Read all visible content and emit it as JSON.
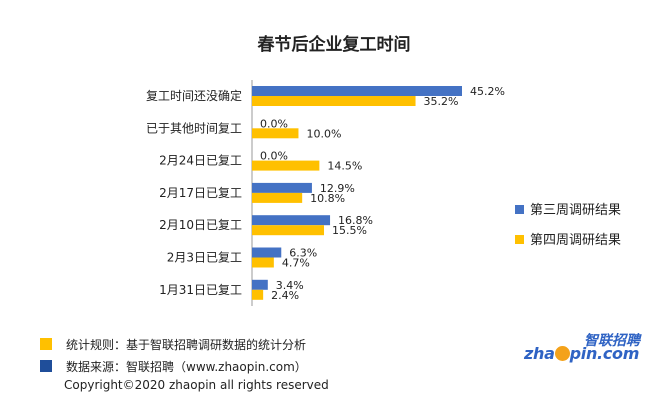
{
  "chart_data": {
    "type": "bar",
    "orientation": "horizontal",
    "title": "春节后企业复工时间",
    "categories": [
      "复工时间还没确定",
      "已于其他时间复工",
      "2月24日已复工",
      "2月17日已复工",
      "2月10日已复工",
      "2月3日已复工",
      "1月31日已复工"
    ],
    "series": [
      {
        "name": "第三周调研结果",
        "color": "#4472c4",
        "values": [
          45.2,
          0.0,
          0.0,
          12.9,
          16.8,
          6.3,
          3.4
        ],
        "labels": [
          "45.2%",
          "0.0%",
          "0.0%",
          "12.9%",
          "16.8%",
          "6.3%",
          "3.4%"
        ]
      },
      {
        "name": "第四周调研结果",
        "color": "#ffc000",
        "values": [
          35.2,
          10.0,
          14.5,
          10.8,
          15.5,
          4.7,
          2.4
        ],
        "labels": [
          "35.2%",
          "10.0%",
          "14.5%",
          "10.8%",
          "15.5%",
          "4.7%",
          "2.4%"
        ]
      }
    ],
    "xlim": [
      0,
      50
    ],
    "grid": false,
    "legend": "right"
  },
  "footnotes": [
    {
      "text": "统计规则：基于智联招聘调研数据的统计分析",
      "color": "#ffc000"
    },
    {
      "text": "数据来源：智联招聘（www.zhaopin.com）",
      "color": "#1f4e9a"
    }
  ],
  "copyright": "Copyright©2020 zhaopin all rights reserved",
  "logo": {
    "cn": "智联招聘",
    "en_pre": "zha",
    "en_post": "pin.com"
  }
}
